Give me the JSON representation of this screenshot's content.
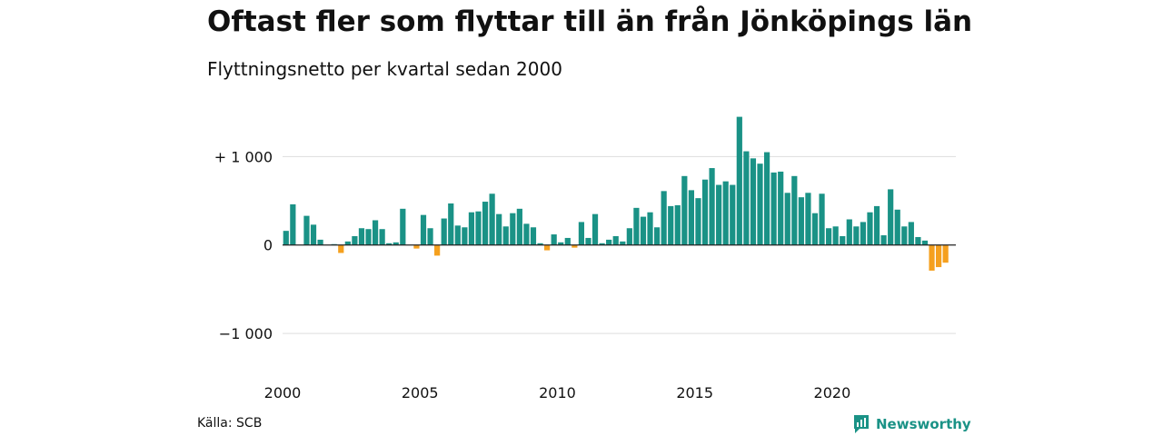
{
  "title": "Oftast fler som flyttar till än från Jönköpings län",
  "subtitle": "Flyttningsnetto per kvartal sedan 2000",
  "source": "Källa: SCB",
  "brand": "Newsworthy",
  "colors": {
    "positive": "#1a9286",
    "negative": "#f5a01e",
    "grid": "#dddddd",
    "zero": "#222222",
    "brand": "#1a9286"
  },
  "chart_data": {
    "type": "bar",
    "ylim": [
      -1400,
      1600
    ],
    "y_ticks": [
      {
        "value": 1000,
        "label": "+ 1 000"
      },
      {
        "value": 0,
        "label": "0"
      },
      {
        "value": -1000,
        "label": "−1 000"
      }
    ],
    "x_ticks": [
      {
        "value": 2000,
        "label": "2000"
      },
      {
        "value": 2005,
        "label": "2005"
      },
      {
        "value": 2010,
        "label": "2010"
      },
      {
        "value": 2015,
        "label": "2015"
      },
      {
        "value": 2020,
        "label": "2020"
      }
    ],
    "start_year": 2000,
    "values": [
      160,
      460,
      0,
      330,
      230,
      60,
      0,
      10,
      -90,
      40,
      100,
      190,
      180,
      280,
      180,
      20,
      30,
      410,
      0,
      -40,
      340,
      190,
      -120,
      300,
      470,
      220,
      200,
      370,
      380,
      490,
      580,
      350,
      210,
      360,
      410,
      240,
      200,
      20,
      -60,
      120,
      30,
      80,
      -30,
      260,
      80,
      350,
      20,
      60,
      100,
      40,
      190,
      420,
      320,
      370,
      200,
      610,
      440,
      450,
      780,
      620,
      530,
      740,
      870,
      680,
      720,
      680,
      1450,
      1060,
      980,
      920,
      1050,
      820,
      830,
      590,
      780,
      540,
      590,
      360,
      580,
      190,
      210,
      100,
      290,
      210,
      260,
      370,
      440,
      110,
      630,
      400,
      210,
      260,
      90,
      50,
      -290,
      -250,
      -200
    ]
  }
}
